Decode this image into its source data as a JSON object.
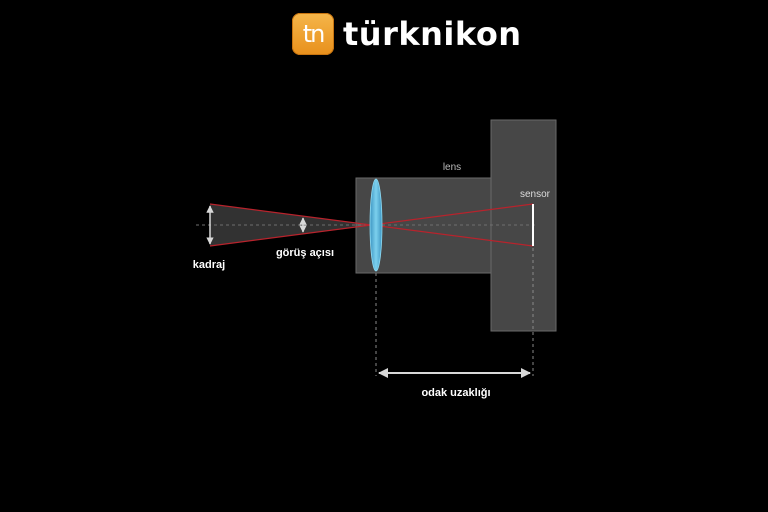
{
  "brand": {
    "logo_text": "tn",
    "name": "türknikon"
  },
  "diagram": {
    "labels": {
      "lens": "lens",
      "sensor": "sensor",
      "kadraj": "kadraj",
      "view_angle": "görüş açısı",
      "focal_length": "odak uzaklığı"
    },
    "colors": {
      "background": "#000000",
      "camera_body": "#474747",
      "lens_element": "#5ab4d8",
      "light_rays": "#b8232c",
      "dimension_arrows": "#d8d8d8"
    }
  }
}
